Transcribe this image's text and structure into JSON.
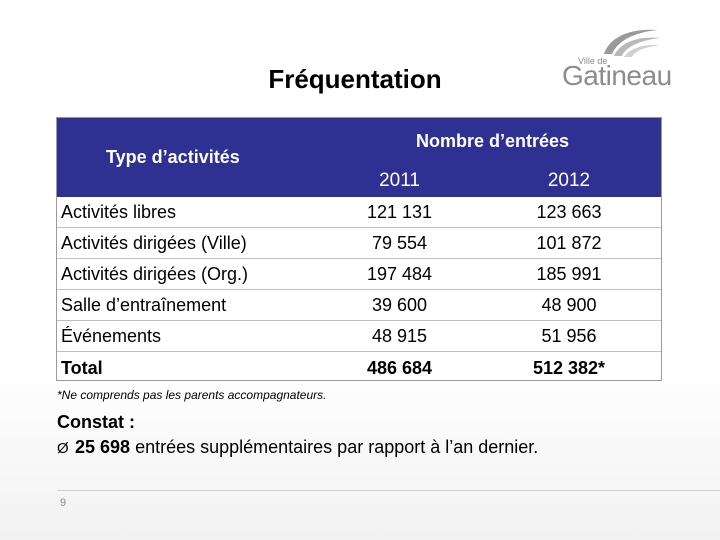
{
  "slide": {
    "title": "Fréquentation",
    "page_number": "9"
  },
  "logo": {
    "small_text": "Ville de",
    "name": "Gatineau"
  },
  "table": {
    "type_header": "Type d’activités",
    "count_header": "Nombre d’entrées",
    "years": [
      "2011",
      "2012"
    ],
    "rows": [
      {
        "label": "Activités libres",
        "y2011": "121 131",
        "y2012": "123 663"
      },
      {
        "label": "Activités dirigées (Ville)",
        "y2011": "79 554",
        "y2012": "101 872"
      },
      {
        "label": "Activités dirigées (Org.)",
        "y2011": "197 484",
        "y2012": "185 991"
      },
      {
        "label": "Salle d’entraînement",
        "y2011": "39 600",
        "y2012": "48 900"
      },
      {
        "label": "Événements",
        "y2011": "48 915",
        "y2012": "51 956"
      },
      {
        "label": "Total",
        "y2011": "486 684",
        "y2012": "512 382*"
      }
    ],
    "header_color": "#2e3192"
  },
  "footnote": "*Ne comprends pas les parents accompagnateurs.",
  "constat": {
    "heading": "Constat :",
    "bullet_symbol": "Ø",
    "highlight": "25 698",
    "text": " entrées supplémentaires par rapport à l’an dernier."
  }
}
